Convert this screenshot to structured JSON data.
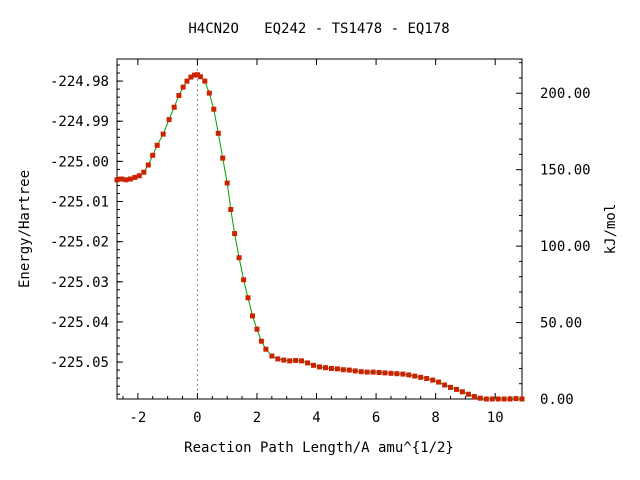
{
  "chart_data": {
    "type": "line",
    "title": "H4CN2O   EQ242 - TS1478 - EQ178",
    "xlabel": "Reaction Path Length/A amu^{1/2}",
    "ylabel": "Energy/Hartree",
    "y2label": "kJ/mol",
    "xlim": [
      -2.7,
      10.9
    ],
    "ylim": [
      -225.0592,
      -224.9745
    ],
    "y2lim": [
      0.0,
      222.4
    ],
    "x_ticks": [
      -2,
      0,
      2,
      4,
      6,
      8,
      10
    ],
    "x_tick_labels": [
      "-2",
      "0",
      "2",
      "4",
      "6",
      "8",
      "10"
    ],
    "y_ticks": [
      -224.98,
      -224.99,
      -225.0,
      -225.01,
      -225.02,
      -225.03,
      -225.04,
      -225.05
    ],
    "y_tick_labels": [
      "-224.98",
      "-224.99",
      "-225.00",
      "-225.01",
      "-225.02",
      "-225.03",
      "-225.04",
      "-225.05"
    ],
    "y2_ticks": [
      200,
      150,
      100,
      50,
      0
    ],
    "y2_tick_labels": [
      "200.00",
      "150.00",
      "100.00",
      "50.00",
      "0.00"
    ],
    "grid": false,
    "ts_marker_x": 0,
    "line_color": "#00a000",
    "point_color": "#cc2200",
    "ts_line_color": "#888888",
    "series": [
      {
        "x": [
          -2.7,
          -2.55,
          -2.4,
          -2.25,
          -2.1,
          -1.95,
          -1.8,
          -1.65,
          -1.5,
          -1.35,
          -1.15,
          -0.95,
          -0.78,
          -0.62,
          -0.48,
          -0.35,
          -0.22,
          -0.1,
          0.0,
          0.1,
          0.25,
          0.4,
          0.55,
          0.7,
          0.85,
          1.0,
          1.12,
          1.25,
          1.4,
          1.55,
          1.7,
          1.85,
          2.0,
          2.15,
          2.3,
          2.5,
          2.7,
          2.9,
          3.1,
          3.3,
          3.5,
          3.7,
          3.9,
          4.1,
          4.3,
          4.5,
          4.7,
          4.9,
          5.1,
          5.3,
          5.5,
          5.7,
          5.9,
          6.1,
          6.3,
          6.5,
          6.7,
          6.9,
          7.1,
          7.3,
          7.5,
          7.7,
          7.9,
          8.1,
          8.3,
          8.5,
          8.7,
          8.9,
          9.1,
          9.3,
          9.5,
          9.7,
          9.9,
          10.1,
          10.3,
          10.5,
          10.7,
          10.9
        ],
        "y": [
          -225.0046,
          -225.0044,
          -225.0046,
          -225.0044,
          -225.004,
          -225.0036,
          -225.0027,
          -225.0009,
          -224.9985,
          -224.996,
          -224.9932,
          -224.9896,
          -224.9865,
          -224.9836,
          -224.9815,
          -224.98,
          -224.979,
          -224.9785,
          -224.9784,
          -224.9789,
          -224.98,
          -224.983,
          -224.987,
          -224.993,
          -224.9992,
          -225.0054,
          -225.012,
          -225.018,
          -225.024,
          -225.0295,
          -225.034,
          -225.0385,
          -225.0418,
          -225.0448,
          -225.0468,
          -225.0485,
          -225.0492,
          -225.0495,
          -225.0497,
          -225.0496,
          -225.0497,
          -225.0502,
          -225.0508,
          -225.0512,
          -225.0514,
          -225.0516,
          -225.0517,
          -225.0519,
          -225.052,
          -225.0522,
          -225.0524,
          -225.0525,
          -225.0525,
          -225.0526,
          -225.0527,
          -225.0528,
          -225.0529,
          -225.053,
          -225.0532,
          -225.0535,
          -225.0538,
          -225.0541,
          -225.0545,
          -225.055,
          -225.0557,
          -225.0563,
          -225.0568,
          -225.0574,
          -225.058,
          -225.0586,
          -225.059,
          -225.0592,
          -225.0592,
          -225.0592,
          -225.0592,
          -225.0592,
          -225.0591,
          -225.0592
        ]
      }
    ]
  }
}
